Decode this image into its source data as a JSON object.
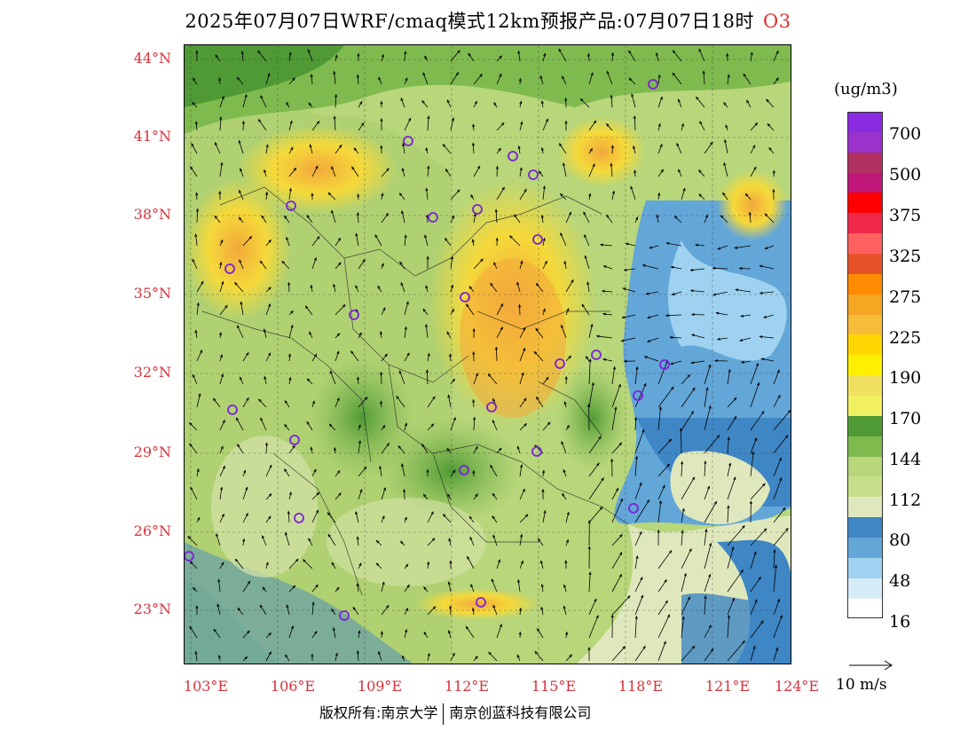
{
  "title": {
    "main": "2025年07月07日WRF/cmaq模式12km预报产品:07月07日18时",
    "pollutant": "O3"
  },
  "map": {
    "lat_labels": [
      "44°N",
      "41°N",
      "38°N",
      "35°N",
      "32°N",
      "29°N",
      "26°N",
      "23°N"
    ],
    "lon_labels": [
      "103°E",
      "106°E",
      "109°E",
      "112°E",
      "115°E",
      "118°E",
      "121°E",
      "124°E"
    ],
    "background_colors": {
      "land_low": "#d9e7b8",
      "land_mid": "#b8d67a",
      "land_green": "#7fba4e",
      "land_dark": "#4f9a35",
      "ocean_dark": "#3f86c4",
      "ocean_mid": "#63a6d8",
      "ocean_light": "#9ed2f0",
      "high_yellow": "#f5d93a",
      "high_orange": "#f2a93b"
    }
  },
  "colorbar": {
    "units": "(ug/m3)",
    "colors": [
      "#8b2be2",
      "#9933cc",
      "#b03060",
      "#c0177a",
      "#ff0000",
      "#f0284a",
      "#ff6060",
      "#e8522a",
      "#ff8c00",
      "#f5a623",
      "#f7bd3a",
      "#ffd700",
      "#fff000",
      "#f0e060",
      "#f0f060",
      "#4f9a35",
      "#7fba4e",
      "#b8d67a",
      "#c8de8c",
      "#dfe8bc",
      "#3f86c4",
      "#63a6d8",
      "#9ed2f0",
      "#d6edf8",
      "#ffffff"
    ],
    "labels": [
      "700",
      "500",
      "375",
      "325",
      "275",
      "225",
      "190",
      "170",
      "144",
      "112",
      "80",
      "48",
      "16"
    ]
  },
  "vector_reference": {
    "label": "10 m/s"
  },
  "copyright": {
    "left": "版权所有:南京大学",
    "right": "南京创蓝科技有限公司"
  }
}
